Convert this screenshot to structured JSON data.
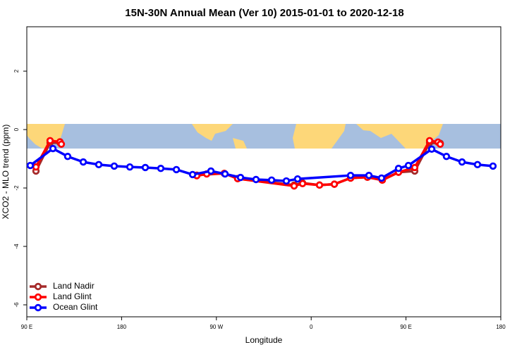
{
  "chart_data": {
    "type": "line",
    "title": "15N-30N Annual Mean (Ver 10)   2015-01-01 to 2020-12-18",
    "x_label": "Longitude",
    "y_label": "XCO2 - MLO trend (ppm)",
    "xlim": [
      90,
      540
    ],
    "ylim": [
      -6.41,
      3.52
    ],
    "xticks": [
      {
        "value": 90,
        "label": "90 E"
      },
      {
        "value": 180,
        "label": "180"
      },
      {
        "value": 270,
        "label": "90 W"
      },
      {
        "value": 360,
        "label": "0"
      },
      {
        "value": 450,
        "label": "90 E"
      },
      {
        "value": 540,
        "label": "180"
      }
    ],
    "yticks": [
      -6,
      -4,
      -2,
      0,
      2
    ],
    "legend": "bottom-left",
    "series": [
      {
        "name": "Land Nadir",
        "color": "#a52a2a",
        "x": [
          98.7,
          112.1,
          121.5,
          251.4,
          277.5,
          290.2,
          343.8,
          351.8,
          367.9,
          382,
          397.4,
          413.4,
          427.5,
          442.9,
          458.3,
          472.4,
          482.5
        ],
        "values": [
          -1.42,
          -0.45,
          -0.45,
          -1.56,
          -1.5,
          -1.68,
          -1.9,
          -1.83,
          -1.9,
          -1.87,
          -1.66,
          -1.63,
          -1.73,
          -1.46,
          -1.42,
          -0.45,
          -0.47
        ]
      },
      {
        "name": "Land Glint",
        "color": "#ff0000",
        "x": [
          98.7,
          112.1,
          121.5,
          122.8,
          251.4,
          260.8,
          277.5,
          290.2,
          343.8,
          351.8,
          367.9,
          382,
          397.4,
          413.4,
          427.5,
          442.9,
          458.3,
          472.4,
          480.4,
          482.5
        ],
        "values": [
          -1.28,
          -0.38,
          -0.42,
          -0.5,
          -1.58,
          -1.52,
          -1.5,
          -1.68,
          -1.93,
          -1.85,
          -1.9,
          -1.87,
          -1.66,
          -1.63,
          -1.73,
          -1.46,
          -1.3,
          -0.38,
          -0.43,
          -0.5
        ]
      },
      {
        "name": "Ocean Glint",
        "color": "#0000ff",
        "x": [
          93.3,
          114.8,
          128.8,
          143.6,
          158.3,
          173,
          187.8,
          202.5,
          217.2,
          232,
          247.4,
          264.8,
          278.2,
          292.9,
          307.6,
          322.4,
          336.4,
          347.1,
          397.4,
          414.8,
          426.8,
          442.9,
          452.3,
          474.4,
          488.4,
          503.2,
          517.9,
          532.6
        ],
        "values": [
          -1.23,
          -0.65,
          -0.92,
          -1.11,
          -1.2,
          -1.25,
          -1.28,
          -1.3,
          -1.33,
          -1.37,
          -1.54,
          -1.42,
          -1.52,
          -1.64,
          -1.71,
          -1.73,
          -1.76,
          -1.69,
          -1.57,
          -1.57,
          -1.66,
          -1.33,
          -1.23,
          -0.67,
          -0.92,
          -1.11,
          -1.2,
          -1.25
        ]
      }
    ]
  }
}
